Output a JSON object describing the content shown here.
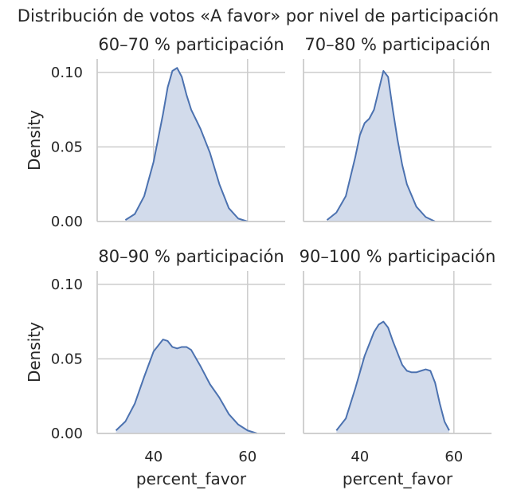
{
  "chart_data": {
    "type": "area",
    "title": "Distribución de votos «A favor» por nivel de participación",
    "xlabel": "percent_favor",
    "ylabel": "Density",
    "xlim": [
      28,
      68
    ],
    "ylim": [
      0,
      0.109
    ],
    "x_ticks": [
      "40",
      "60"
    ],
    "y_ticks": [
      "0.00",
      "0.05",
      "0.10"
    ],
    "grid": true,
    "line_color": "#4c72b0",
    "fill_color": "#d2dbeb",
    "panels": [
      {
        "title": "60–70 % participación",
        "x": [
          34,
          36,
          38,
          40,
          41,
          42,
          43,
          44,
          45,
          46,
          47,
          48,
          50,
          52,
          54,
          56,
          58,
          60
        ],
        "y": [
          0.001,
          0.005,
          0.017,
          0.04,
          0.056,
          0.072,
          0.09,
          0.101,
          0.103,
          0.097,
          0.085,
          0.075,
          0.062,
          0.046,
          0.025,
          0.009,
          0.002,
          0.0
        ]
      },
      {
        "title": "70–80 % participación",
        "x": [
          33,
          35,
          37,
          39,
          40,
          41,
          42,
          43,
          44,
          45,
          46,
          47,
          48,
          49,
          50,
          52,
          54,
          56
        ],
        "y": [
          0.001,
          0.006,
          0.017,
          0.043,
          0.058,
          0.066,
          0.069,
          0.075,
          0.088,
          0.101,
          0.097,
          0.075,
          0.055,
          0.038,
          0.025,
          0.01,
          0.003,
          0.0
        ]
      },
      {
        "title": "80–90 % participación",
        "x": [
          32,
          34,
          36,
          38,
          40,
          42,
          43,
          44,
          45,
          46,
          47,
          48,
          50,
          52,
          54,
          56,
          58,
          60,
          62
        ],
        "y": [
          0.002,
          0.008,
          0.02,
          0.038,
          0.055,
          0.063,
          0.062,
          0.058,
          0.057,
          0.058,
          0.058,
          0.056,
          0.045,
          0.033,
          0.024,
          0.013,
          0.006,
          0.002,
          0.0
        ]
      },
      {
        "title": "90–100 % participación",
        "x": [
          35,
          37,
          39,
          41,
          42,
          43,
          44,
          45,
          46,
          47,
          48,
          49,
          50,
          51,
          52,
          53,
          54,
          55,
          56,
          57,
          58,
          59
        ],
        "y": [
          0.002,
          0.01,
          0.03,
          0.052,
          0.06,
          0.068,
          0.073,
          0.075,
          0.071,
          0.062,
          0.054,
          0.046,
          0.042,
          0.041,
          0.041,
          0.042,
          0.043,
          0.042,
          0.034,
          0.02,
          0.008,
          0.002
        ]
      }
    ]
  }
}
